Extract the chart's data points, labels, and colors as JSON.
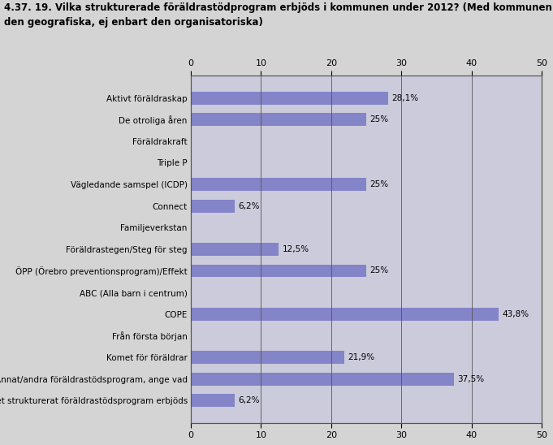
{
  "title_line1": "4.37. 19. Vilka strukturerade föräldrastödprogram erbjöds i kommunen under 2012? (Med kommunen avses",
  "title_line2": "den geografiska, ej enbart den organisatoriska)",
  "categories": [
    "Aktivt föräldraskap",
    "De otroliga åren",
    "Föräldrakraft",
    "Triple P",
    "Vägledande samspel (ICDP)",
    "Connect",
    "Familjeverkstan",
    "Föräldrastegen/Steg för steg",
    "ÖPP (Örebro preventionsprogram)/Effekt",
    "ABC (Alla barn i centrum)",
    "COPE",
    "Från första början",
    "Komet för föräldrar",
    "Annat/andra föräldrastödsprogram, ange vad",
    "Inget strukturerat föräldrastödsprogram erbjöds"
  ],
  "values": [
    28.1,
    25.0,
    0.0,
    0.0,
    25.0,
    6.2,
    0.0,
    12.5,
    25.0,
    0.0,
    43.8,
    0.0,
    21.9,
    37.5,
    6.2
  ],
  "labels": [
    "28,1%",
    "25%",
    "",
    "",
    "25%",
    "6,2%",
    "",
    "12,5%",
    "25%",
    "",
    "43,8%",
    "",
    "21,9%",
    "37,5%",
    "6,2%"
  ],
  "bar_color": "#8484c8",
  "background_color": "#d4d4d4",
  "plot_background_color": "#cbcbdb",
  "xlim": [
    0,
    50
  ],
  "xticks": [
    0,
    10,
    20,
    30,
    40,
    50
  ],
  "title_fontsize": 8.5,
  "label_fontsize": 7.5,
  "tick_fontsize": 8,
  "bar_label_fontsize": 7.5
}
